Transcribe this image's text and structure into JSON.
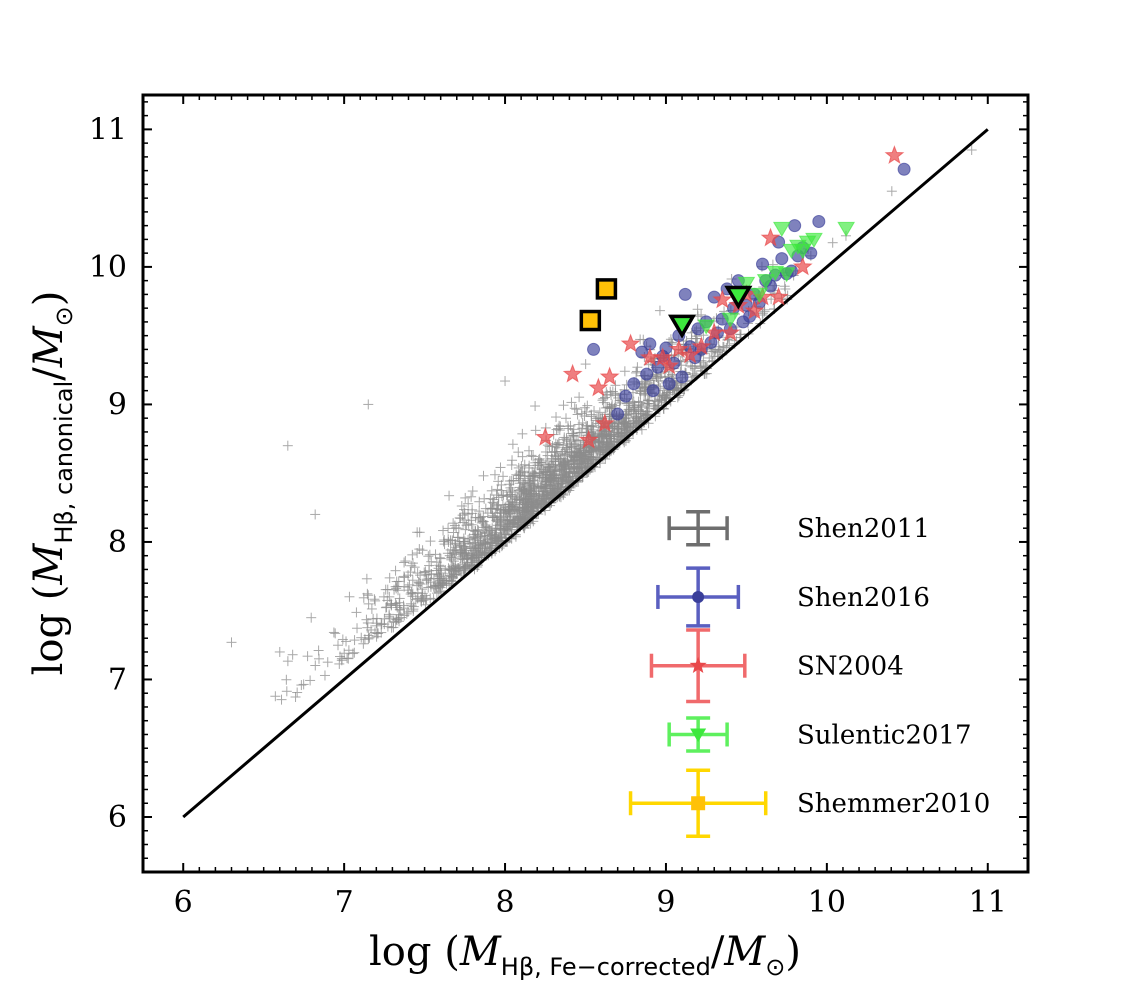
{
  "chart_data": {
    "type": "scatter",
    "title": "",
    "xlabel": "log (M_{Hβ, Fe−corrected}/M_⊙)",
    "ylabel": "log (M_{Hβ, canonical}/M_⊙)",
    "xlabel_parts": {
      "prefix": "log (",
      "M": "M",
      "sub": "Hβ, Fe−corrected",
      "slash": "/",
      "Msun": "M",
      "sun": "⊙",
      "suffix": ")"
    },
    "ylabel_parts": {
      "prefix": "log (",
      "M": "M",
      "sub": "Hβ, canonical",
      "slash": "/",
      "Msun": "M",
      "sun": "⊙",
      "suffix": ")"
    },
    "xlim": [
      5.75,
      11.25
    ],
    "ylim": [
      5.6,
      11.25
    ],
    "xticks": [
      "6",
      "7",
      "8",
      "9",
      "10",
      "11"
    ],
    "yticks": [
      "6",
      "7",
      "8",
      "9",
      "10",
      "11"
    ],
    "grid": false,
    "one_to_one_line": {
      "x": [
        6,
        11
      ],
      "y": [
        6,
        11
      ],
      "color": "#000000"
    },
    "legend_placement": "lower-right",
    "series": [
      {
        "name": "Shen2011",
        "marker": "plus",
        "color": "#8c8c8c",
        "error_bar": {
          "x": 9.2,
          "y": 8.1,
          "xerr": 0.18,
          "yerr": 0.12,
          "color": "#6e6e6e"
        },
        "points_generated": "dense cloud (~2000 objects) around the 1:1 line, log M from 6.3 to 10.9",
        "extreme_points": [
          [
            6.3,
            7.27
          ],
          [
            6.6,
            7.2
          ],
          [
            6.68,
            7.18
          ],
          [
            6.65,
            8.7
          ],
          [
            6.82,
            8.2
          ],
          [
            7.15,
            9.0
          ],
          [
            8.0,
            9.17
          ],
          [
            10.9,
            10.85
          ]
        ]
      },
      {
        "name": "Shen2016",
        "marker": "circle",
        "color": "#3a3f9a",
        "error_bar": {
          "x": 9.2,
          "y": 7.6,
          "xerr": 0.25,
          "yerr": 0.21,
          "color": "#5a5fc0"
        },
        "points": [
          [
            8.55,
            9.4
          ],
          [
            8.7,
            8.93
          ],
          [
            8.75,
            9.06
          ],
          [
            8.8,
            9.15
          ],
          [
            8.85,
            9.38
          ],
          [
            8.88,
            9.22
          ],
          [
            8.9,
            9.44
          ],
          [
            8.92,
            9.1
          ],
          [
            8.95,
            9.27
          ],
          [
            8.98,
            9.35
          ],
          [
            9.0,
            9.41
          ],
          [
            9.02,
            9.15
          ],
          [
            9.05,
            9.3
          ],
          [
            9.08,
            9.5
          ],
          [
            9.1,
            9.2
          ],
          [
            9.12,
            9.8
          ],
          [
            9.15,
            9.42
          ],
          [
            9.18,
            9.34
          ],
          [
            9.2,
            9.55
          ],
          [
            9.22,
            9.4
          ],
          [
            9.25,
            9.6
          ],
          [
            9.28,
            9.45
          ],
          [
            9.3,
            9.78
          ],
          [
            9.32,
            9.52
          ],
          [
            9.35,
            9.62
          ],
          [
            9.38,
            9.84
          ],
          [
            9.4,
            9.55
          ],
          [
            9.42,
            9.7
          ],
          [
            9.45,
            9.9
          ],
          [
            9.48,
            9.6
          ],
          [
            9.5,
            9.72
          ],
          [
            9.52,
            9.64
          ],
          [
            9.55,
            9.8
          ],
          [
            9.58,
            9.74
          ],
          [
            9.6,
            10.02
          ],
          [
            9.62,
            9.9
          ],
          [
            9.65,
            9.86
          ],
          [
            9.68,
            9.94
          ],
          [
            9.7,
            10.18
          ],
          [
            9.72,
            10.06
          ],
          [
            9.75,
            9.95
          ],
          [
            9.78,
            9.97
          ],
          [
            9.8,
            10.3
          ],
          [
            9.82,
            10.08
          ],
          [
            9.85,
            10.14
          ],
          [
            9.9,
            10.1
          ],
          [
            9.95,
            10.33
          ],
          [
            10.48,
            10.71
          ]
        ]
      },
      {
        "name": "SN2004",
        "marker": "star",
        "color": "#e8484a",
        "error_bar": {
          "x": 9.2,
          "y": 7.1,
          "xerr": 0.29,
          "yerr": 0.26,
          "color": "#f06a6c"
        },
        "points": [
          [
            8.25,
            8.76
          ],
          [
            8.42,
            9.22
          ],
          [
            8.52,
            8.74
          ],
          [
            8.58,
            9.12
          ],
          [
            8.62,
            8.86
          ],
          [
            8.65,
            9.2
          ],
          [
            8.78,
            9.44
          ],
          [
            8.9,
            9.34
          ],
          [
            8.98,
            9.34
          ],
          [
            9.02,
            9.28
          ],
          [
            9.08,
            9.4
          ],
          [
            9.15,
            9.36
          ],
          [
            9.22,
            9.42
          ],
          [
            9.3,
            9.52
          ],
          [
            9.35,
            9.76
          ],
          [
            9.4,
            9.52
          ],
          [
            9.45,
            9.72
          ],
          [
            9.5,
            9.8
          ],
          [
            9.55,
            9.68
          ],
          [
            9.6,
            9.78
          ],
          [
            9.65,
            10.21
          ],
          [
            9.7,
            9.78
          ],
          [
            9.85,
            10.0
          ],
          [
            10.42,
            10.81
          ]
        ]
      },
      {
        "name": "Sulentic2017",
        "marker": "triangle-down",
        "color": "#3de83d",
        "error_bar": {
          "x": 9.2,
          "y": 6.6,
          "xerr": 0.18,
          "yerr": 0.12,
          "color": "#5ef05e"
        },
        "points": [
          [
            9.1,
            9.58
          ],
          [
            9.25,
            9.57
          ],
          [
            9.4,
            9.62
          ],
          [
            9.5,
            9.88
          ],
          [
            9.58,
            9.8
          ],
          [
            9.62,
            9.9
          ],
          [
            9.68,
            9.96
          ],
          [
            9.72,
            10.28
          ],
          [
            9.75,
            9.95
          ],
          [
            9.78,
            10.12
          ],
          [
            9.82,
            10.15
          ],
          [
            9.85,
            10.12
          ],
          [
            9.88,
            10.18
          ],
          [
            9.92,
            10.2
          ],
          [
            10.12,
            10.28
          ]
        ]
      },
      {
        "name": "Shemmer2010",
        "marker": "square",
        "color": "#ffc107",
        "error_bar": {
          "x": 9.2,
          "y": 6.1,
          "xerr": 0.42,
          "yerr": 0.24,
          "color": "#ffd700"
        },
        "points": [
          [
            8.53,
            9.61
          ],
          [
            8.63,
            9.84
          ]
        ]
      }
    ],
    "highlighted_points": [
      {
        "marker": "triangle-down",
        "x": 9.1,
        "y": 9.58,
        "fill": "#3de83d",
        "edge": "#000000"
      },
      {
        "marker": "triangle-down",
        "x": 9.45,
        "y": 9.79,
        "fill": "#3de83d",
        "edge": "#000000"
      },
      {
        "marker": "square",
        "x": 8.53,
        "y": 9.61,
        "fill": "#ffc107",
        "edge": "#000000"
      },
      {
        "marker": "square",
        "x": 8.63,
        "y": 9.84,
        "fill": "#ffc107",
        "edge": "#000000"
      }
    ]
  }
}
